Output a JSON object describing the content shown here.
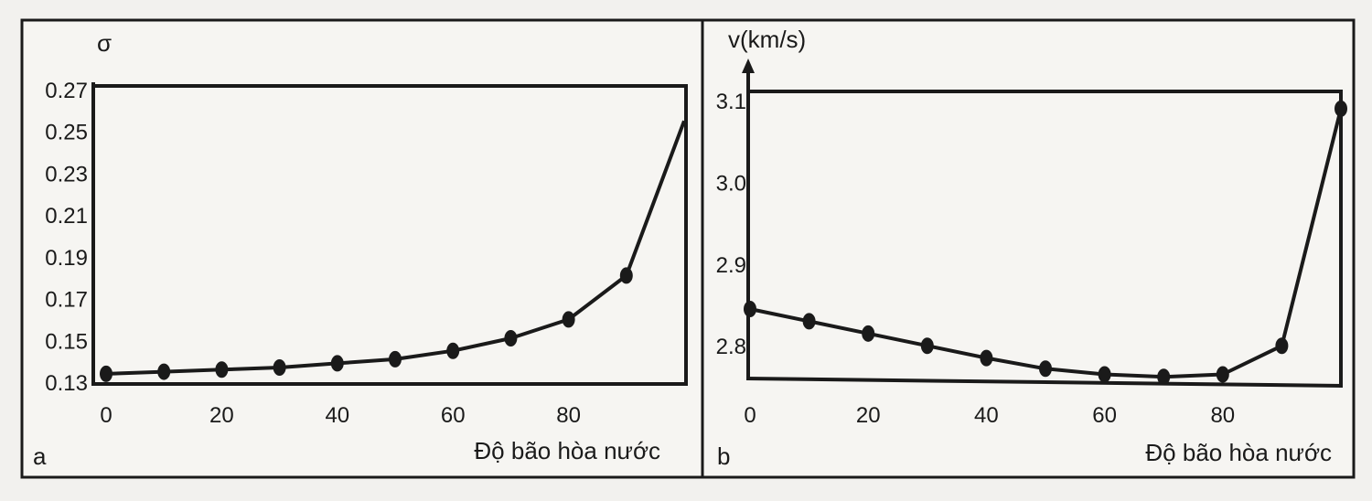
{
  "colors": {
    "background": "#f2f1ee",
    "panel": "#f6f5f2",
    "ink": "#1a1a1a"
  },
  "chart_data": [
    {
      "panel_label": "a",
      "type": "line",
      "xlabel": "Độ bão hòa nước",
      "ylabel": "σ",
      "xlim": [
        0,
        100
      ],
      "ylim": [
        0.13,
        0.27
      ],
      "xticks": [
        "0",
        "20",
        "40",
        "60",
        "80"
      ],
      "yticks": [
        "0.27",
        "0.25",
        "0.23",
        "0.21",
        "0.19",
        "0.17",
        "0.15",
        "0.13"
      ],
      "grid": false,
      "x": [
        0,
        10,
        20,
        30,
        40,
        50,
        60,
        70,
        80,
        90,
        100
      ],
      "y": [
        0.134,
        0.135,
        0.136,
        0.137,
        0.139,
        0.141,
        0.145,
        0.151,
        0.16,
        0.181,
        0.255
      ],
      "markers": [
        true,
        true,
        true,
        true,
        true,
        true,
        true,
        true,
        true,
        true,
        false
      ]
    },
    {
      "panel_label": "b",
      "type": "line",
      "xlabel": "Độ bão hòa nước",
      "ylabel": "v(km/s)",
      "xlim": [
        0,
        100
      ],
      "ylim": [
        2.76,
        3.11
      ],
      "xticks": [
        "0",
        "20",
        "40",
        "60",
        "80"
      ],
      "yticks": [
        "3.1",
        "3.0",
        "2.9",
        "2.8"
      ],
      "grid": false,
      "x": [
        0,
        10,
        20,
        30,
        40,
        50,
        60,
        70,
        80,
        90,
        100
      ],
      "y": [
        2.845,
        2.83,
        2.815,
        2.8,
        2.785,
        2.772,
        2.765,
        2.762,
        2.765,
        2.8,
        3.09
      ],
      "markers": [
        true,
        true,
        true,
        true,
        true,
        true,
        true,
        true,
        true,
        true,
        true
      ]
    }
  ]
}
